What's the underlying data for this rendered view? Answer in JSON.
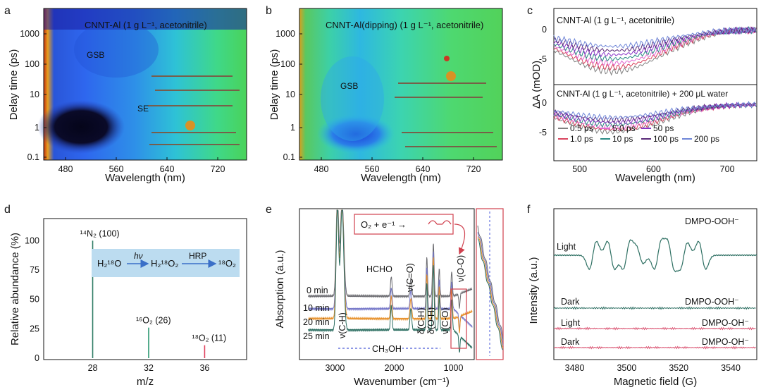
{
  "panel_letters": [
    "a",
    "b",
    "c",
    "d",
    "e",
    "f"
  ],
  "a": {
    "title": "CNNT-Al (1 g L⁻¹, acetonitrile)",
    "ylabel": "Delay time (ps)",
    "xlabel": "Wavelength (nm)",
    "yticks": [
      "1000",
      "100",
      "10",
      "1",
      "0.1"
    ],
    "xticks": [
      "480",
      "560",
      "640",
      "720"
    ],
    "gsb": "GSB",
    "ese": "SE"
  },
  "b": {
    "title": "CNNT-Al(dipping) (1 g L⁻¹, acetonitrile)",
    "ylabel": "Delay time (ps)",
    "xlabel": "Wavelength (nm)",
    "yticks": [
      "1000",
      "100",
      "10",
      "1",
      "0.1"
    ],
    "xticks": [
      "480",
      "560",
      "640",
      "720"
    ],
    "gsb": "GSB"
  },
  "c": {
    "top_title": "CNNT-Al (1 g L⁻¹, acetonitrile)",
    "bottom_title": "CNNT-Al (1 g L⁻¹, acetonitrile) + 200 μL water",
    "ylabel": "ΔA (mOD)",
    "xlabel": "Wavelength (nm)",
    "yticks_top": [
      "0",
      "-5"
    ],
    "yticks_bottom": [
      "0",
      "-5"
    ],
    "xticks": [
      "500",
      "600",
      "700"
    ],
    "legend": [
      {
        "label": "0.5 ps",
        "color": "#808080"
      },
      {
        "label": "1.0 ps",
        "color": "#d9435e"
      },
      {
        "label": "5.0 ps",
        "color": "#e36ad0"
      },
      {
        "label": "10 ps",
        "color": "#2b8a84"
      },
      {
        "label": "50 ps",
        "color": "#8a35c8"
      },
      {
        "label": "100 ps",
        "color": "#5a2a78"
      },
      {
        "label": "200 ps",
        "color": "#6f86d8"
      }
    ]
  },
  "d": {
    "ylabel": "Relative abundance (%)",
    "xlabel": "m/z",
    "yticks": [
      "100",
      "75",
      "50",
      "25",
      "0"
    ],
    "xticks": [
      "28",
      "32",
      "36"
    ],
    "peaks": [
      {
        "label": "¹⁴N₂ (100)",
        "mz": 28,
        "value": 100,
        "color": "#2f7d66"
      },
      {
        "label": "¹⁶O₂ (26)",
        "mz": 32,
        "value": 26,
        "color": "#2f9a74"
      },
      {
        "label": "¹⁸O₂ (11)",
        "mz": 36,
        "value": 11,
        "color": "#e0405e"
      }
    ],
    "scheme": {
      "s1": "H₂¹⁸O",
      "a1": "hν",
      "s2": "H₂¹⁸O₂",
      "a2": "HRP",
      "s3": "¹⁸O₂"
    }
  },
  "e": {
    "ylabel": "Absorption (a.u.)",
    "xlabel": "Wavenumber (cm⁻¹)",
    "xticks": [
      "3000",
      "2000",
      "1000"
    ],
    "reaction": "O₂ + e⁻¹ →",
    "times": [
      "0 min",
      "10 min",
      "20 min",
      "25 min"
    ],
    "labels": {
      "hcho": "HCHO",
      "ch3oh": "CH₃OH",
      "vch": "ν(C-H)",
      "vco": "ν(C=O)",
      "dch": "δ(C-H)",
      "doh": "δ(O-H)",
      "vco2": "ν(C-O)",
      "voo": "ν(O-O)"
    }
  },
  "f": {
    "ylabel": "Intensity (a.u.)",
    "xlabel": "Magnetic field (G)",
    "xticks": [
      "3480",
      "3500",
      "3520",
      "3540"
    ],
    "traces": [
      {
        "cond": "Light",
        "species": "DMPO-OOH⁻"
      },
      {
        "cond": "Dark",
        "species": "DMPO-OOH⁻"
      },
      {
        "cond": "Light",
        "species": "DMPO-OH⁻"
      },
      {
        "cond": "Dark",
        "species": "DMPO-OH⁻"
      }
    ]
  }
}
